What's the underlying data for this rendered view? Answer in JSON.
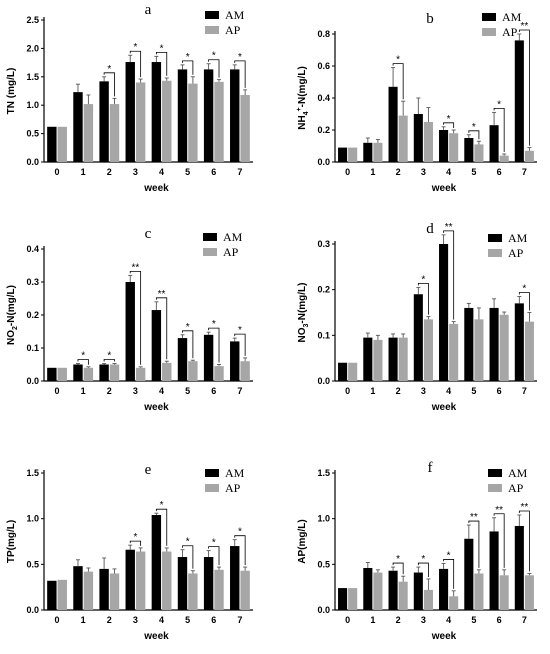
{
  "chart_data": [
    {
      "type": "bar",
      "panel": "a",
      "categories": [
        "0",
        "1",
        "2",
        "3",
        "4",
        "5",
        "6",
        "7"
      ],
      "xlabel": "week",
      "ylabel": "TN (mg/L)",
      "ylim": [
        0,
        2.5
      ],
      "yticks": [
        "0.0",
        "0.5",
        "1.0",
        "1.5",
        "2.0",
        "2.5"
      ],
      "legend": "top-right",
      "series": [
        {
          "name": "AM",
          "values": [
            0.62,
            1.23,
            1.42,
            1.76,
            1.76,
            1.63,
            1.63,
            1.63
          ],
          "errors": [
            0,
            0.14,
            0.08,
            0.12,
            0.1,
            0.08,
            0.1,
            0.08
          ]
        },
        {
          "name": "AP",
          "values": [
            0.62,
            1.02,
            1.02,
            1.4,
            1.43,
            1.38,
            1.41,
            1.18
          ],
          "errors": [
            0,
            0.16,
            0.1,
            0.06,
            0.05,
            0.12,
            0.04,
            0.09
          ]
        }
      ],
      "significance": [
        "",
        "",
        "*",
        "*",
        "*",
        "*",
        "*",
        "*"
      ]
    },
    {
      "type": "bar",
      "panel": "b",
      "categories": [
        "0",
        "1",
        "2",
        "3",
        "4",
        "5",
        "6",
        "7"
      ],
      "xlabel": "week",
      "ylabel": "NH4+-N(mg/L)",
      "ylim": [
        0,
        0.8
      ],
      "yticks": [
        "0.0",
        "0.2",
        "0.4",
        "0.6",
        "0.8"
      ],
      "legend": "top-right",
      "series": [
        {
          "name": "AM",
          "values": [
            0.09,
            0.12,
            0.47,
            0.3,
            0.2,
            0.15,
            0.23,
            0.76
          ],
          "errors": [
            0,
            0.03,
            0.12,
            0.1,
            0.02,
            0.02,
            0.08,
            0.04
          ]
        },
        {
          "name": "AP",
          "values": [
            0.09,
            0.12,
            0.29,
            0.25,
            0.18,
            0.11,
            0.04,
            0.07
          ],
          "errors": [
            0,
            0.02,
            0.09,
            0.09,
            0.02,
            0.02,
            0.01,
            0.02
          ]
        }
      ],
      "significance": [
        "",
        "",
        "*",
        "",
        "*",
        "*",
        "*",
        "**"
      ]
    },
    {
      "type": "bar",
      "panel": "c",
      "categories": [
        "0",
        "1",
        "2",
        "3",
        "4",
        "5",
        "6",
        "7"
      ],
      "xlabel": "week",
      "ylabel": "NO2-N(mg/L)",
      "ylim": [
        0,
        0.4
      ],
      "yticks": [
        "0.0",
        "0.1",
        "0.2",
        "0.3",
        "0.4"
      ],
      "legend": "top-right",
      "series": [
        {
          "name": "AM",
          "values": [
            0.04,
            0.05,
            0.05,
            0.3,
            0.215,
            0.13,
            0.14,
            0.12
          ],
          "errors": [
            0,
            0.003,
            0.003,
            0.02,
            0.025,
            0.01,
            0.008,
            0.01
          ]
        },
        {
          "name": "AP",
          "values": [
            0.04,
            0.04,
            0.05,
            0.04,
            0.055,
            0.06,
            0.045,
            0.06
          ],
          "errors": [
            0,
            0.003,
            0.003,
            0.003,
            0.005,
            0.003,
            0.005,
            0.01
          ]
        }
      ],
      "significance": [
        "",
        "*",
        "*",
        "**",
        "**",
        "*",
        "*",
        "*"
      ]
    },
    {
      "type": "bar",
      "panel": "d",
      "categories": [
        "0",
        "1",
        "2",
        "3",
        "4",
        "5",
        "6",
        "7"
      ],
      "xlabel": "week",
      "ylabel": "NO3-N(mg/L)",
      "ylim": [
        0,
        0.3
      ],
      "yticks": [
        "0.0",
        "0.1",
        "0.2",
        "0.3"
      ],
      "legend": "top-right",
      "series": [
        {
          "name": "AM",
          "values": [
            0.04,
            0.095,
            0.095,
            0.19,
            0.3,
            0.16,
            0.16,
            0.17
          ],
          "errors": [
            0,
            0.01,
            0.008,
            0.015,
            0.02,
            0.01,
            0.02,
            0.015
          ]
        },
        {
          "name": "AP",
          "values": [
            0.04,
            0.09,
            0.095,
            0.135,
            0.125,
            0.135,
            0.145,
            0.13
          ],
          "errors": [
            0,
            0.01,
            0.008,
            0.006,
            0.005,
            0.025,
            0.006,
            0.02
          ]
        }
      ],
      "significance": [
        "",
        "",
        "",
        "*",
        "**",
        "",
        "",
        "*"
      ]
    },
    {
      "type": "bar",
      "panel": "e",
      "categories": [
        "0",
        "1",
        "2",
        "3",
        "4",
        "5",
        "6",
        "7"
      ],
      "xlabel": "week",
      "ylabel": "TP(mg/L)",
      "ylim": [
        0,
        1.5
      ],
      "yticks": [
        "0.0",
        "0.5",
        "1.0",
        "1.5"
      ],
      "legend": "top-right",
      "series": [
        {
          "name": "AM",
          "values": [
            0.32,
            0.48,
            0.45,
            0.66,
            1.04,
            0.58,
            0.58,
            0.7
          ],
          "errors": [
            0,
            0.07,
            0.12,
            0.05,
            0.02,
            0.08,
            0.07,
            0.07
          ]
        },
        {
          "name": "AP",
          "values": [
            0.33,
            0.42,
            0.4,
            0.64,
            0.64,
            0.4,
            0.44,
            0.43
          ],
          "errors": [
            0,
            0.04,
            0.05,
            0.04,
            0.04,
            0.03,
            0.03,
            0.04
          ]
        }
      ],
      "significance": [
        "",
        "",
        "",
        "*",
        "*",
        "*",
        "*",
        "*"
      ]
    },
    {
      "type": "bar",
      "panel": "f",
      "categories": [
        "0",
        "1",
        "2",
        "3",
        "4",
        "5",
        "6",
        "7"
      ],
      "xlabel": "week",
      "ylabel": "AP(mg/L)",
      "ylim": [
        0,
        1.5
      ],
      "yticks": [
        "0.0",
        "0.5",
        "1.0",
        "1.5"
      ],
      "legend": "top-right",
      "series": [
        {
          "name": "AM",
          "values": [
            0.24,
            0.46,
            0.43,
            0.41,
            0.45,
            0.78,
            0.86,
            0.92
          ],
          "errors": [
            0,
            0.06,
            0.04,
            0.06,
            0.06,
            0.15,
            0.15,
            0.12
          ]
        },
        {
          "name": "AP",
          "values": [
            0.24,
            0.41,
            0.31,
            0.22,
            0.15,
            0.4,
            0.38,
            0.38
          ],
          "errors": [
            0,
            0.03,
            0.06,
            0.12,
            0.06,
            0.04,
            0.06,
            0.02
          ]
        }
      ],
      "significance": [
        "",
        "",
        "*",
        "*",
        "*",
        "**",
        "**",
        "**"
      ]
    }
  ],
  "colors": {
    "AM": "#000000",
    "AP": "#a6a6a6"
  }
}
